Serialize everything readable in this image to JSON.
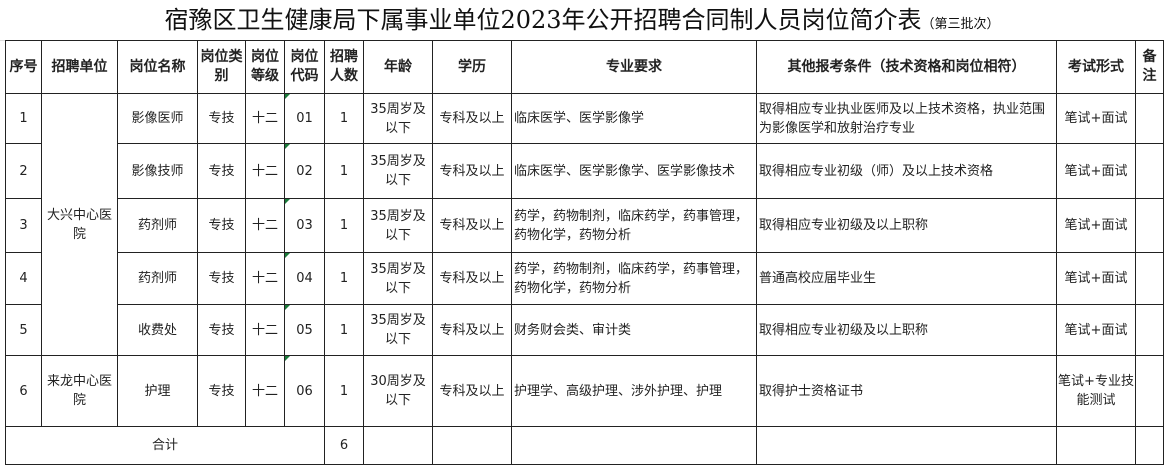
{
  "title": "宿豫区卫生健康局下属事业单位2023年公开招聘合同制人员岗位简介表",
  "subtitle": "（第三批次）",
  "headers": [
    "序号",
    "招聘单位",
    "岗位名称",
    "岗位类别",
    "岗位等级",
    "岗位代码",
    "招聘人数",
    "年龄",
    "学历",
    "专业要求",
    "其他报考条件（技术资格和岗位相符）",
    "考试形式",
    "备注"
  ],
  "units": [
    "大兴中心医院",
    "来龙中心医院"
  ],
  "rows": [
    {
      "no": "1",
      "name": "影像医师",
      "type": "专技",
      "level": "十二",
      "code": "01",
      "count": "1",
      "age": "35周岁及以下",
      "edu": "专科及以上",
      "major": "临床医学、医学影像学",
      "other": "取得相应专业执业医师及以上技术资格，执业范围为影像医学和放射治疗专业",
      "exam": "笔试+面试",
      "note": ""
    },
    {
      "no": "2",
      "name": "影像技师",
      "type": "专技",
      "level": "十二",
      "code": "02",
      "count": "1",
      "age": "35周岁及以下",
      "edu": "专科及以上",
      "major": "临床医学、医学影像学、医学影像技术",
      "other": "取得相应专业初级（师）及以上技术资格",
      "exam": "笔试+面试",
      "note": ""
    },
    {
      "no": "3",
      "name": "药剂师",
      "type": "专技",
      "level": "十二",
      "code": "03",
      "count": "1",
      "age": "35周岁及以下",
      "edu": "专科及以上",
      "major": "药学，药物制剂，临床药学，药事管理，药物化学，药物分析",
      "other": "取得相应专业初级及以上职称",
      "exam": "笔试+面试",
      "note": ""
    },
    {
      "no": "4",
      "name": "药剂师",
      "type": "专技",
      "level": "十二",
      "code": "04",
      "count": "1",
      "age": "35周岁及以下",
      "edu": "专科及以上",
      "major": "药学，药物制剂，临床药学，药事管理，药物化学，药物分析",
      "other": "普通高校应届毕业生",
      "exam": "笔试+面试",
      "note": ""
    },
    {
      "no": "5",
      "name": "收费处",
      "type": "专技",
      "level": "十二",
      "code": "05",
      "count": "1",
      "age": "35周岁及以下",
      "edu": "专科及以上",
      "major": "财务财会类、审计类",
      "other": "取得相应专业初级及以上职称",
      "exam": "笔试+面试",
      "note": ""
    },
    {
      "no": "6",
      "name": "护理",
      "type": "专技",
      "level": "十二",
      "code": "06",
      "count": "1",
      "age": "30周岁及以下",
      "edu": "专科及以上",
      "major": "护理学、高级护理、涉外护理、护理",
      "other": "取得护士资格证书",
      "exam": "笔试+专业技能测试",
      "note": ""
    }
  ],
  "total": {
    "label": "合计",
    "count": "6"
  }
}
